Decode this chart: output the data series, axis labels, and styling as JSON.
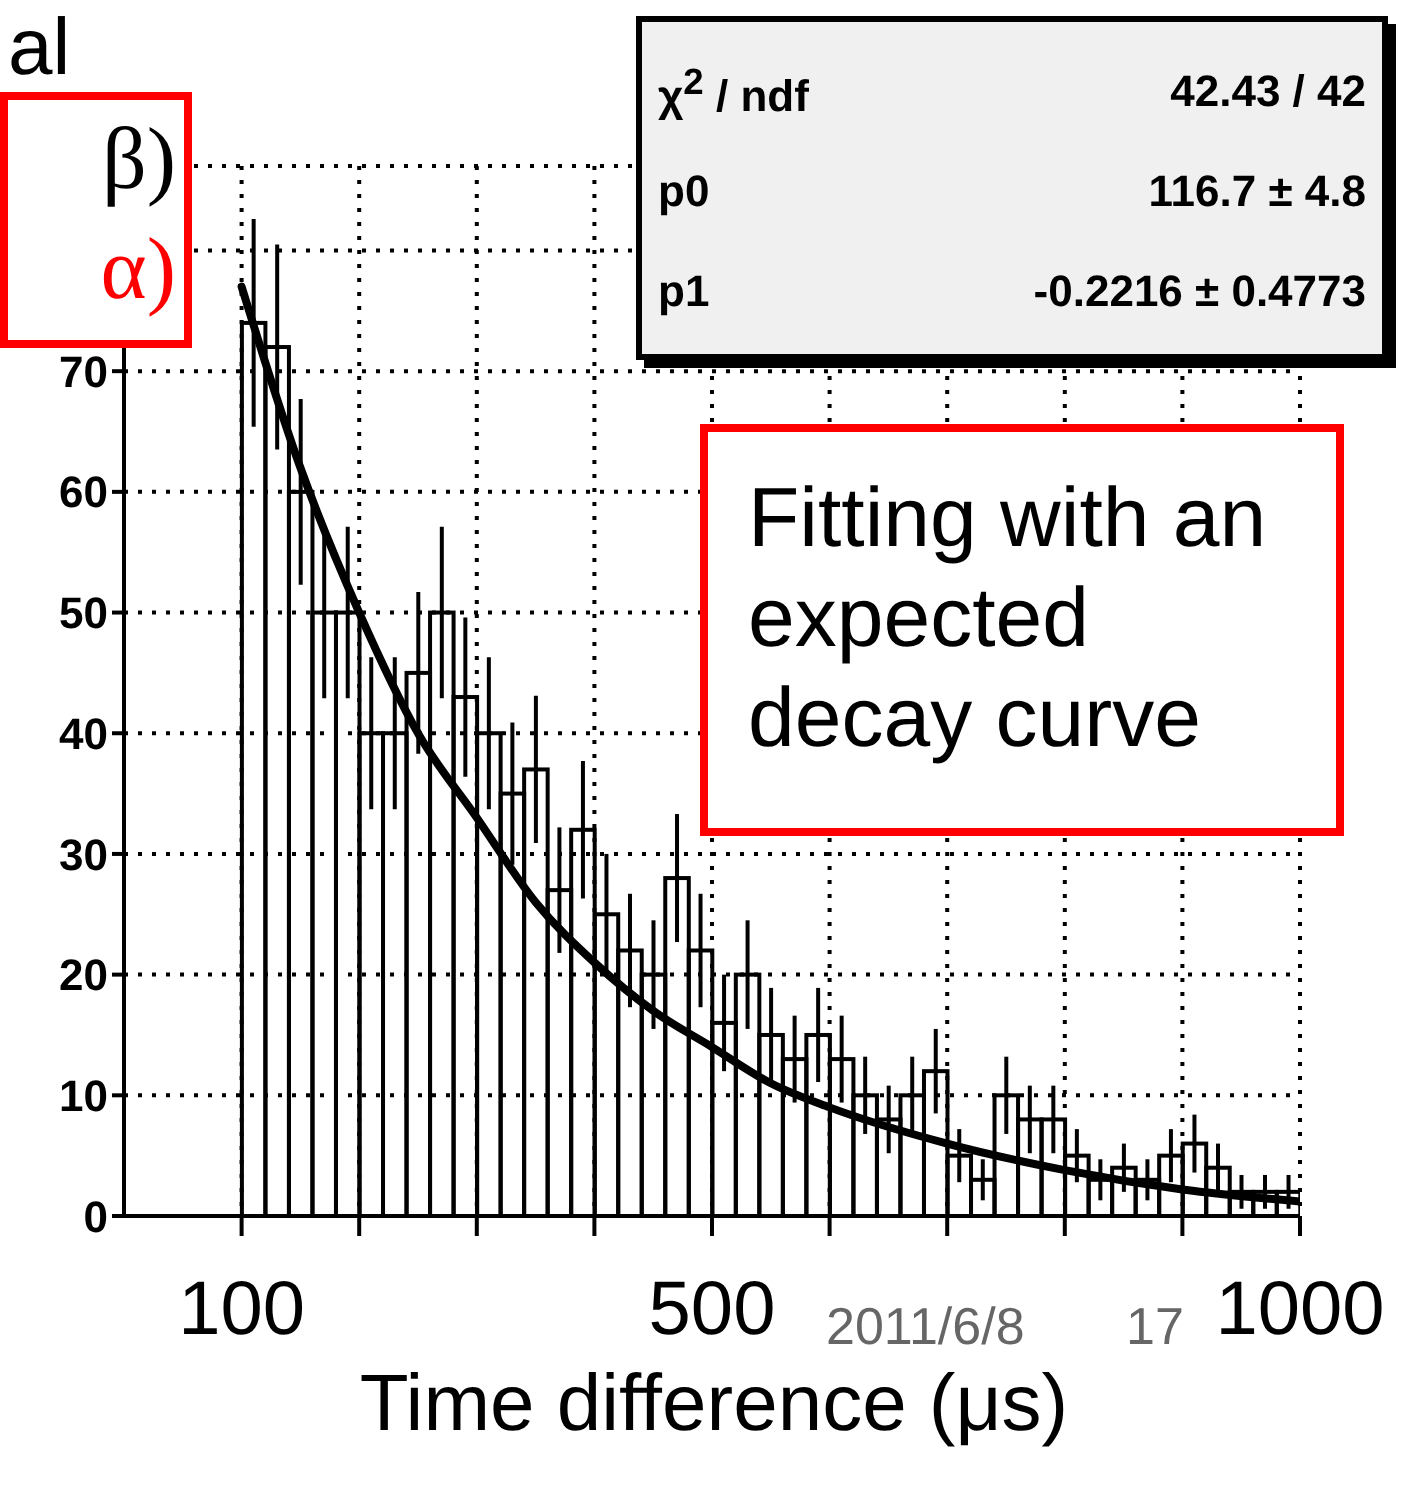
{
  "chart_data": {
    "type": "histogram",
    "xlabel": "Time difference (μs)",
    "bins": [
      100,
      120,
      140,
      160,
      180,
      200,
      220,
      240,
      260,
      280,
      300,
      320,
      340,
      360,
      380,
      400,
      420,
      440,
      460,
      480,
      500,
      520,
      540,
      560,
      580,
      600,
      620,
      640,
      660,
      680,
      700,
      720,
      740,
      760,
      780,
      800,
      820,
      840,
      860,
      880,
      900,
      920,
      940,
      960,
      980,
      1000
    ],
    "series": [
      {
        "color": "#000000",
        "values": [
          74,
          72,
          60,
          50,
          50,
          40,
          40,
          45,
          50,
          43,
          40,
          35,
          37,
          27,
          32,
          25,
          22,
          20,
          28,
          22,
          16,
          20,
          15,
          13,
          15,
          13,
          10,
          8,
          10,
          12,
          5,
          3,
          10,
          8,
          8,
          5,
          3,
          4,
          3,
          5,
          6,
          4,
          2,
          2,
          2
        ],
        "errors": [
          8.6,
          8.5,
          7.7,
          7.1,
          7.1,
          6.3,
          6.3,
          6.7,
          7.1,
          6.6,
          6.3,
          5.9,
          6.1,
          5.2,
          5.7,
          5,
          4.7,
          4.5,
          5.3,
          4.7,
          4,
          4.5,
          3.9,
          3.6,
          3.9,
          3.6,
          3.2,
          2.8,
          3.2,
          3.5,
          2.2,
          1.7,
          3.2,
          2.8,
          2.8,
          2.2,
          1.7,
          2,
          1.7,
          2.2,
          2.4,
          2,
          1.4,
          1.4,
          1.4
        ]
      },
      {
        "type": "line",
        "color": "#000000",
        "x": [
          100,
          150,
          200,
          250,
          300,
          350,
          400,
          450,
          500,
          550,
          600,
          700,
          800,
          900,
          1000
        ],
        "values": [
          77,
          62,
          50,
          40,
          33,
          26,
          21,
          17,
          14,
          11,
          9,
          6,
          3.8,
          2.2,
          1.2
        ]
      }
    ],
    "xlim": [
      0,
      1000
    ],
    "xticks": [
      100,
      {
        "value": 200,
        "label": null
      },
      {
        "value": 300,
        "label": null
      },
      {
        "value": 400,
        "label": null
      },
      500,
      {
        "value": 600,
        "label": null
      },
      {
        "value": 700,
        "label": null
      },
      {
        "value": 800,
        "label": null
      },
      {
        "value": 900,
        "label": null
      },
      1000
    ],
    "ylim": [
      0,
      87
    ],
    "yticks": [
      0,
      10,
      20,
      30,
      40,
      50,
      60,
      70,
      {
        "value": 80,
        "label": null
      }
    ],
    "grid": true,
    "annotations": [
      "al",
      "β)",
      "α)",
      "χ$^{2}$ / ndf",
      "42.43 / 42",
      "p0",
      "116.7 ± 4.8",
      "p1",
      "-0.2216 ± 0.4773",
      "Fitting with an expected decay curve",
      "2011/6/8",
      "17"
    ]
  }
}
